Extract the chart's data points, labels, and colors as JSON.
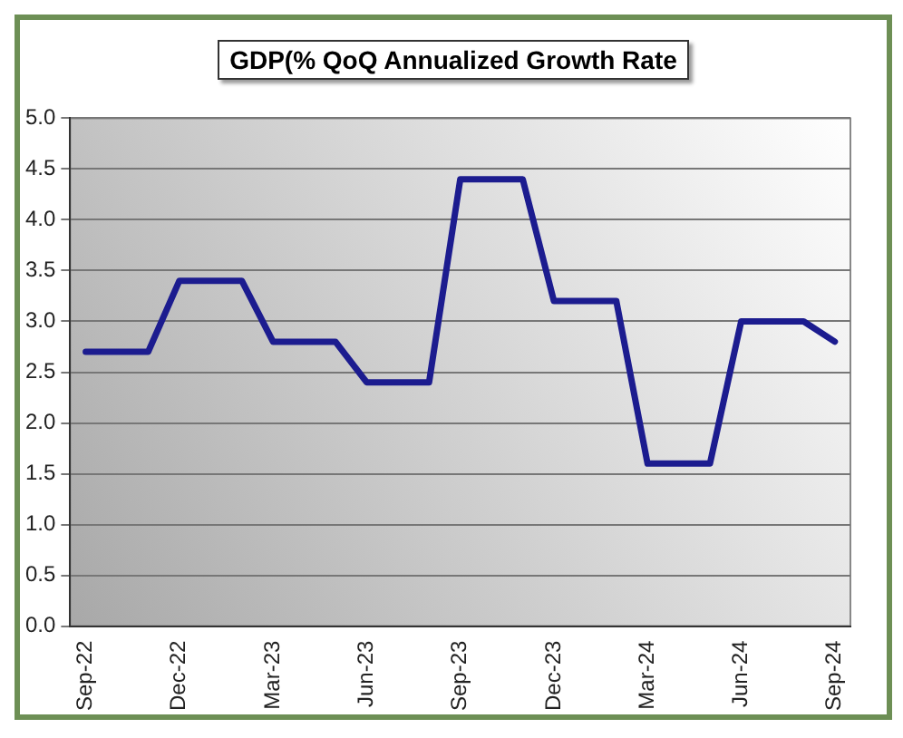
{
  "chart_data": {
    "type": "line",
    "title": "GDP(% QoQ Annualized Growth Rate",
    "categories": [
      "Sep-22",
      null,
      null,
      "Dec-22",
      null,
      null,
      "Mar-23",
      null,
      null,
      "Jun-23",
      null,
      null,
      "Sep-23",
      null,
      null,
      "Dec-23",
      null,
      null,
      "Mar-24",
      null,
      null,
      "Jun-24",
      null,
      null,
      "Sep-24"
    ],
    "series": [
      {
        "color": "#1c1c8f",
        "values": [
          2.7,
          2.7,
          2.7,
          3.4,
          3.4,
          3.4,
          2.8,
          2.8,
          2.8,
          2.4,
          2.4,
          2.4,
          4.4,
          4.4,
          4.4,
          3.2,
          3.2,
          3.2,
          1.6,
          1.6,
          1.6,
          3.0,
          3.0,
          3.0,
          2.8
        ]
      }
    ],
    "ylim": [
      0,
      5
    ],
    "yticks": [
      {
        "value": 0,
        "label": "0.0"
      },
      {
        "value": 0.5,
        "label": "0.5"
      },
      {
        "value": 1,
        "label": "1.0"
      },
      {
        "value": 1.5,
        "label": "1.5"
      },
      {
        "value": 2,
        "label": "2.0"
      },
      {
        "value": 2.5,
        "label": "2.5"
      },
      {
        "value": 3,
        "label": "3.0"
      },
      {
        "value": 3.5,
        "label": "3.5"
      },
      {
        "value": 4,
        "label": "4.0"
      },
      {
        "value": 4.5,
        "label": "4.5"
      },
      {
        "value": 5,
        "label": "5.0"
      }
    ],
    "grid": "y",
    "legend": false,
    "marker": "none",
    "line_style": "solid"
  }
}
